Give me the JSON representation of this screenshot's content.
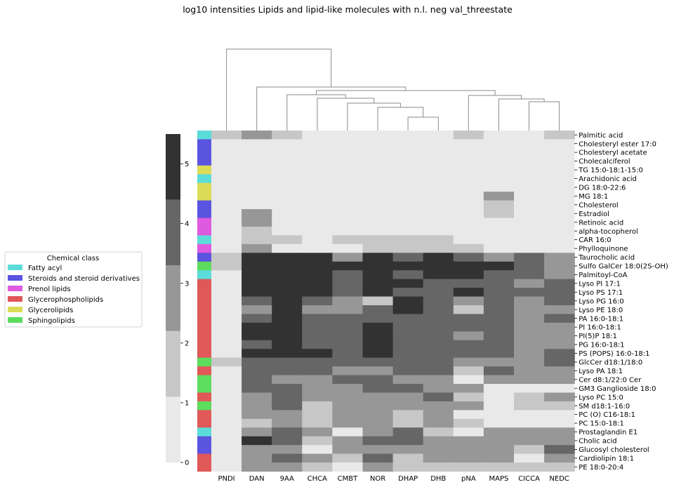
{
  "chart_data": {
    "type": "heatmap",
    "title": "log10 intensities Lipids and lipid-like molecules with n.l. neg val_threestate",
    "columns": [
      "PNDI",
      "DAN",
      "9AA",
      "CHCA",
      "CMBT",
      "NOR",
      "DHAP",
      "DHB",
      "pNA",
      "MAPS",
      "CICCA",
      "NEDC"
    ],
    "rows": [
      "Palmitic acid",
      "Cholesteryl ester 17:0",
      "Cholesteryl acetate",
      "Cholecalciferol",
      "TG 15:0-18:1-15:0",
      "Arachidonic acid",
      "DG 18:0-22:6",
      "MG 18:1",
      "Cholesterol",
      "Estradiol",
      "Retinoic acid",
      "alpha-tocopherol",
      "CAR 16:0",
      "Phylloquinone",
      "Taurocholic acid",
      "Sulfo GalCer 18:0(2S-OH)",
      "Palmitoyl-CoA",
      "Lyso PI 17:1",
      "Lyso PS 17:1",
      "Lyso PG 16:0",
      "Lyso PE 18:0",
      "PA 16:0-18:1",
      "PI 16:0-18:1",
      "PI(5)P 18:1",
      "PG 16:0-18:1",
      "PS (POPS) 16:0-18:1",
      "GlcCer d18:1/18:0",
      "Lyso PA 18:1",
      "Cer d8:1/22:0 Cer",
      "GM3 Ganglioside 18:0",
      "Lyso PC 15:0",
      "SM d18:1-16:0",
      "PC (O) C16-18:1",
      "PC 15:0-18:1",
      "Prostaglandin E1",
      "Cholic acid",
      "Glucosyl cholesterol",
      "Cardiolipin 18:1",
      "PE 18:0-20:4"
    ],
    "row_class": [
      "Fatty acyl",
      "Steroids and steroid derivatives",
      "Steroids and steroid derivatives",
      "Steroids and steroid derivatives",
      "Glycerolipids",
      "Fatty acyl",
      "Glycerolipids",
      "Glycerolipids",
      "Steroids and steroid derivatives",
      "Steroids and steroid derivatives",
      "Prenol lipids",
      "Prenol lipids",
      "Fatty acyl",
      "Prenol lipids",
      "Steroids and steroid derivatives",
      "Sphingolipids",
      "Fatty acyl",
      "Glycerophospholipids",
      "Glycerophospholipids",
      "Glycerophospholipids",
      "Glycerophospholipids",
      "Glycerophospholipids",
      "Glycerophospholipids",
      "Glycerophospholipids",
      "Glycerophospholipids",
      "Glycerophospholipids",
      "Sphingolipids",
      "Glycerophospholipids",
      "Sphingolipids",
      "Sphingolipids",
      "Glycerophospholipids",
      "Sphingolipids",
      "Glycerophospholipids",
      "Glycerophospholipids",
      "Fatty acyl",
      "Steroids and steroid derivatives",
      "Steroids and steroid derivatives",
      "Glycerophospholipids",
      "Glycerophospholipids"
    ],
    "values": [
      [
        1,
        2,
        1,
        0,
        0,
        0,
        0,
        0,
        1,
        0,
        0,
        1
      ],
      [
        0,
        0,
        0,
        0,
        0,
        0,
        0,
        0,
        0,
        0,
        0,
        0
      ],
      [
        0,
        0,
        0,
        0,
        0,
        0,
        0,
        0,
        0,
        0,
        0,
        0
      ],
      [
        0,
        0,
        0,
        0,
        0,
        0,
        0,
        0,
        0,
        0,
        0,
        0
      ],
      [
        0,
        0,
        0,
        0,
        0,
        0,
        0,
        0,
        0,
        0,
        0,
        0
      ],
      [
        0,
        0,
        0,
        0,
        0,
        0,
        0,
        0,
        0,
        0,
        0,
        0
      ],
      [
        0,
        0,
        0,
        0,
        0,
        0,
        0,
        0,
        0,
        0,
        0,
        0
      ],
      [
        0,
        0,
        0,
        0,
        0,
        0,
        0,
        0,
        0,
        2,
        0,
        0
      ],
      [
        0,
        0,
        0,
        0,
        0,
        0,
        0,
        0,
        0,
        1,
        0,
        0
      ],
      [
        0,
        2,
        0,
        0,
        0,
        0,
        0,
        0,
        0,
        1,
        0,
        0
      ],
      [
        0,
        2,
        0,
        0,
        0,
        0,
        0,
        0,
        0,
        0,
        0,
        0
      ],
      [
        0,
        1,
        0,
        0,
        0,
        0,
        0,
        0,
        0,
        0,
        0,
        0
      ],
      [
        0,
        1,
        1,
        0,
        1,
        1,
        1,
        1,
        0,
        0,
        0,
        0
      ],
      [
        0,
        2,
        0,
        0,
        0,
        1,
        1,
        1,
        1,
        0,
        0,
        0
      ],
      [
        1,
        5,
        5,
        5,
        2,
        5,
        3,
        5,
        3,
        2,
        3,
        2
      ],
      [
        1,
        5,
        5,
        5,
        5,
        5,
        5,
        5,
        5,
        5,
        3,
        2
      ],
      [
        0,
        5,
        5,
        5,
        3,
        5,
        3,
        5,
        5,
        3,
        3,
        2
      ],
      [
        0,
        5,
        5,
        5,
        3,
        5,
        5,
        3,
        3,
        3,
        2,
        3
      ],
      [
        0,
        5,
        5,
        5,
        3,
        5,
        3,
        3,
        5,
        3,
        3,
        3
      ],
      [
        0,
        3,
        5,
        3,
        2,
        1,
        5,
        3,
        2,
        3,
        2,
        3
      ],
      [
        0,
        2,
        5,
        2,
        2,
        3,
        5,
        3,
        1,
        3,
        2,
        2
      ],
      [
        0,
        3,
        5,
        3,
        3,
        3,
        3,
        3,
        3,
        3,
        2,
        3
      ],
      [
        0,
        5,
        5,
        3,
        3,
        5,
        3,
        3,
        3,
        3,
        2,
        2
      ],
      [
        0,
        5,
        5,
        3,
        3,
        5,
        3,
        3,
        2,
        3,
        2,
        2
      ],
      [
        0,
        3,
        5,
        3,
        3,
        5,
        3,
        3,
        3,
        3,
        2,
        2
      ],
      [
        0,
        5,
        5,
        5,
        3,
        5,
        3,
        3,
        3,
        3,
        2,
        3
      ],
      [
        1,
        3,
        3,
        3,
        3,
        3,
        3,
        3,
        2,
        2,
        2,
        3
      ],
      [
        0,
        3,
        3,
        3,
        2,
        2,
        3,
        3,
        1,
        3,
        2,
        2
      ],
      [
        0,
        3,
        2,
        2,
        3,
        3,
        2,
        2,
        0,
        2,
        2,
        2
      ],
      [
        0,
        3,
        3,
        2,
        2,
        3,
        3,
        2,
        2,
        0,
        0,
        0
      ],
      [
        0,
        2,
        3,
        2,
        2,
        2,
        2,
        3,
        1,
        0,
        1,
        2
      ],
      [
        0,
        2,
        3,
        1,
        2,
        2,
        2,
        2,
        2,
        0,
        1,
        1
      ],
      [
        0,
        2,
        2,
        1,
        2,
        2,
        1,
        2,
        0,
        0,
        0,
        0
      ],
      [
        0,
        1,
        2,
        1,
        2,
        2,
        1,
        2,
        1,
        0,
        0,
        0
      ],
      [
        0,
        2,
        3,
        2,
        0,
        2,
        3,
        1,
        0,
        2,
        2,
        2
      ],
      [
        0,
        5,
        3,
        1,
        2,
        3,
        3,
        2,
        2,
        2,
        2,
        2
      ],
      [
        0,
        2,
        2,
        0,
        2,
        2,
        2,
        2,
        2,
        2,
        1,
        3
      ],
      [
        0,
        2,
        3,
        2,
        1,
        3,
        1,
        2,
        2,
        2,
        0,
        2
      ],
      [
        0,
        2,
        2,
        1,
        0,
        2,
        1,
        1,
        1,
        1,
        1,
        1
      ]
    ],
    "level_values": [
      0.25,
      1.35,
      2.35,
      3.45,
      4.5,
      5.3
    ],
    "level_colors": [
      "#e9e9e9",
      "#c7c7c7",
      "#979797",
      "#666666",
      "#616161",
      "#323232"
    ],
    "colorbar": {
      "ticks": [
        0,
        1,
        2,
        3,
        4,
        5
      ],
      "range": [
        0,
        5.5
      ],
      "direction": "vertical",
      "position": "left"
    },
    "legend": {
      "title": "Chemical class",
      "placement": "left",
      "entries": [
        {
          "name": "Fatty acyl",
          "color": "#5cdcd9"
        },
        {
          "name": "Steroids and steroid derivatives",
          "color": "#5b54e0"
        },
        {
          "name": "Prenol lipids",
          "color": "#de5adf"
        },
        {
          "name": "Glycerophospholipids",
          "color": "#e05858"
        },
        {
          "name": "Glycerolipids",
          "color": "#dcdc56"
        },
        {
          "name": "Sphingolipids",
          "color": "#5ddc5e"
        }
      ]
    },
    "dendrogram": {
      "type": "column",
      "line_color": "#8a8a8a"
    }
  }
}
